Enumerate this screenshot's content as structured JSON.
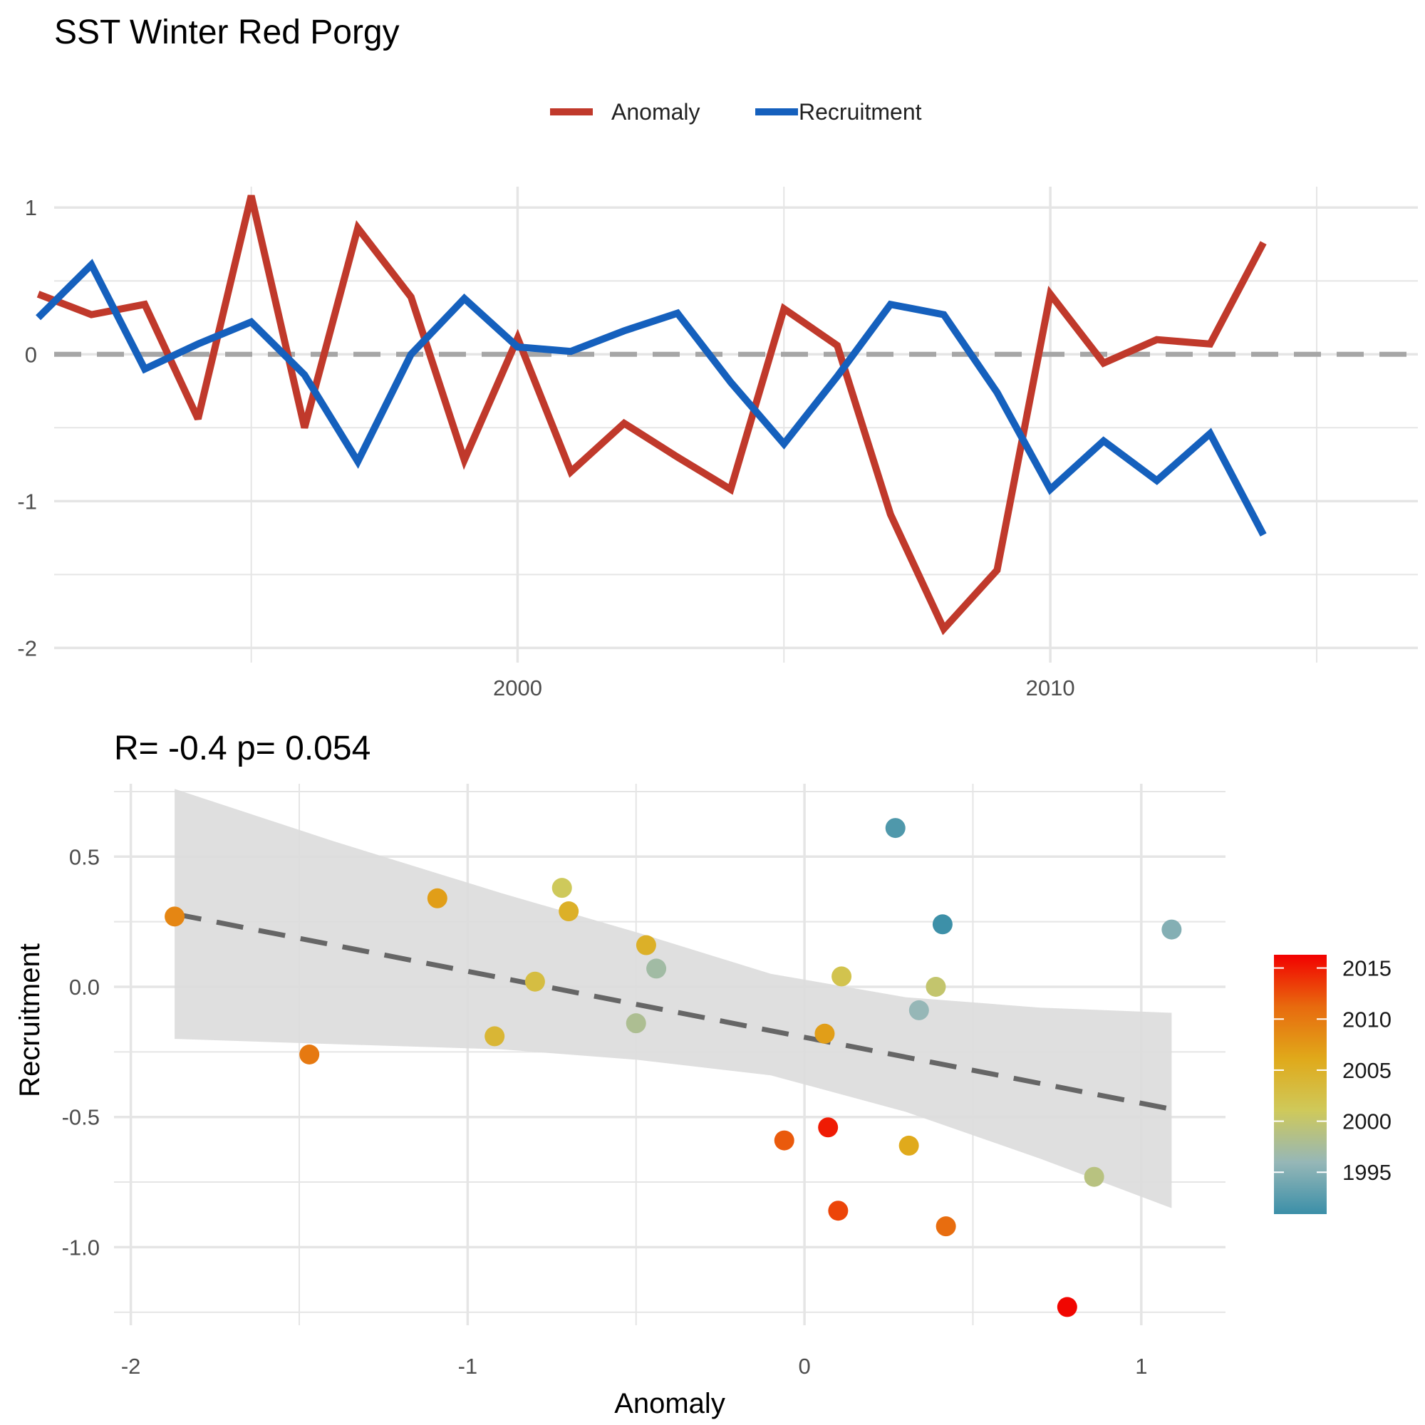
{
  "title": "SST Winter  Red Porgy",
  "stat_label": "R= -0.4  p= 0.054",
  "colors": {
    "anomaly": "#C0392B",
    "recruitment": "#1560BD",
    "zero_line": "#A6A6A6",
    "grid": "#E5E5E5",
    "band": "#DCDCDC",
    "fit_line": "#666666",
    "colorbar": [
      "#3B8FA8",
      "#96B7B7",
      "#CFC95A",
      "#E0A91A",
      "#E86A0E",
      "#F20000"
    ]
  },
  "chart_data": [
    {
      "type": "line",
      "legend": [
        "Anomaly",
        "Recruitment"
      ],
      "legend_position": "top",
      "xlim": [
        1991.3,
        2016.9
      ],
      "ylim": [
        -2.1,
        1.2
      ],
      "x_ticks": [
        {
          "value": 2000,
          "label": "2000"
        },
        {
          "value": 2010,
          "label": "2010"
        }
      ],
      "x_minor_ticks": [
        1995,
        2005,
        2015
      ],
      "y_ticks": [
        {
          "value": 1,
          "label": "1"
        },
        {
          "value": 0,
          "label": "0"
        },
        {
          "value": -1,
          "label": "-1"
        },
        {
          "value": -2,
          "label": "-2"
        }
      ],
      "y_minor_ticks": [
        0.5,
        -0.5,
        -1.5
      ],
      "x": [
        1991,
        1992,
        1993,
        1994,
        1995,
        1996,
        1997,
        1998,
        1999,
        2000,
        2001,
        2002,
        2003,
        2004,
        2005,
        2006,
        2007,
        2008,
        2009,
        2010,
        2011,
        2012,
        2013,
        2014,
        2015,
        2016
      ],
      "series": [
        {
          "name": "Anomaly",
          "values": [
            0.41,
            0.27,
            0.34,
            -0.44,
            1.08,
            -0.5,
            0.86,
            0.39,
            -0.72,
            0.11,
            -0.8,
            -0.47,
            -0.7,
            -0.92,
            0.31,
            0.06,
            -1.09,
            -1.87,
            -1.47,
            0.41,
            -0.06,
            0.1,
            0.07,
            0.76,
            null,
            null
          ]
        },
        {
          "name": "Recruitment",
          "values": [
            0.25,
            0.61,
            -0.1,
            0.07,
            0.22,
            -0.14,
            -0.73,
            0.0,
            0.38,
            0.05,
            0.02,
            0.16,
            0.28,
            -0.19,
            -0.61,
            -0.15,
            0.34,
            0.27,
            -0.26,
            -0.92,
            -0.59,
            -0.86,
            -0.54,
            -1.23,
            null,
            null
          ]
        }
      ],
      "reference_line": 0
    },
    {
      "type": "scatter",
      "xlabel": "Anomaly",
      "ylabel": "Recruitment",
      "xlim": [
        -2.05,
        1.25
      ],
      "ylim": [
        -1.3,
        0.78
      ],
      "x_ticks": [
        {
          "value": -2,
          "label": "-2"
        },
        {
          "value": -1,
          "label": "-1"
        },
        {
          "value": 0,
          "label": "0"
        },
        {
          "value": 1,
          "label": "1"
        }
      ],
      "x_minor_ticks": [
        -1.5,
        -0.5,
        0.5
      ],
      "y_ticks": [
        {
          "value": 0.5,
          "label": "0.5"
        },
        {
          "value": 0,
          "label": "0.0"
        },
        {
          "value": -0.5,
          "label": "-0.5"
        },
        {
          "value": -1,
          "label": "-1.0"
        }
      ],
      "y_minor_ticks": [
        0.75,
        0.25,
        -0.25,
        -0.75,
        -1.25
      ],
      "points": [
        {
          "x": 0.27,
          "y": 0.61,
          "year": 1992
        },
        {
          "x": 0.41,
          "y": 0.24,
          "year": 1991
        },
        {
          "x": 1.09,
          "y": 0.22,
          "year": 1995
        },
        {
          "x": 0.39,
          "y": 0.0,
          "year": 2000
        },
        {
          "x": 0.34,
          "y": -0.09,
          "year": 1996
        },
        {
          "x": 0.11,
          "y": 0.04,
          "year": 2002
        },
        {
          "x": -0.44,
          "y": 0.07,
          "year": 1997
        },
        {
          "x": -0.5,
          "y": -0.14,
          "year": 1998
        },
        {
          "x": -0.47,
          "y": 0.16,
          "year": 2005
        },
        {
          "x": -0.72,
          "y": 0.38,
          "year": 2001
        },
        {
          "x": -0.7,
          "y": 0.29,
          "year": 2005
        },
        {
          "x": -0.8,
          "y": 0.02,
          "year": 2003
        },
        {
          "x": -0.92,
          "y": -0.19,
          "year": 2004
        },
        {
          "x": -1.09,
          "y": 0.34,
          "year": 2007
        },
        {
          "x": -1.87,
          "y": 0.27,
          "year": 2009
        },
        {
          "x": -1.47,
          "y": -0.26,
          "year": 2010
        },
        {
          "x": 0.06,
          "y": -0.18,
          "year": 2007
        },
        {
          "x": 0.31,
          "y": -0.61,
          "year": 2006
        },
        {
          "x": 0.86,
          "y": -0.73,
          "year": 1999
        },
        {
          "x": -0.06,
          "y": -0.59,
          "year": 2012
        },
        {
          "x": 0.07,
          "y": -0.54,
          "year": 2015
        },
        {
          "x": 0.1,
          "y": -0.86,
          "year": 2013
        },
        {
          "x": 0.42,
          "y": -0.92,
          "year": 2011
        },
        {
          "x": 0.78,
          "y": -1.23,
          "year": 2016
        }
      ],
      "fit": {
        "x": [
          -1.87,
          1.09
        ],
        "y": [
          0.28,
          -0.47
        ],
        "band_x": [
          -1.87,
          -1.4,
          -0.9,
          -0.5,
          -0.1,
          0.3,
          0.7,
          1.09
        ],
        "band_upper": [
          0.76,
          0.56,
          0.36,
          0.21,
          0.05,
          -0.04,
          -0.08,
          -0.1
        ],
        "band_lower": [
          -0.2,
          -0.22,
          -0.24,
          -0.28,
          -0.34,
          -0.48,
          -0.66,
          -0.85
        ]
      },
      "colorbar": {
        "label_ticks": [
          {
            "value": 2015,
            "label": "2015"
          },
          {
            "value": 2010,
            "label": "2010"
          },
          {
            "value": 2005,
            "label": "2005"
          },
          {
            "value": 2000,
            "label": "2000"
          },
          {
            "value": 1995,
            "label": "1995"
          }
        ],
        "range": [
          1990.9,
          2016.3
        ]
      }
    }
  ]
}
